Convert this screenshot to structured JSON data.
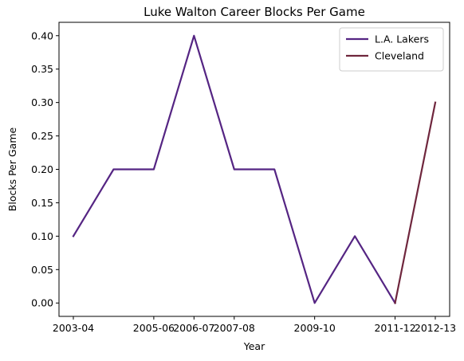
{
  "chart_data": {
    "type": "line",
    "title": "Luke Walton Career Blocks Per Game",
    "xlabel": "Year",
    "ylabel": "Blocks Per Game",
    "x_tick_labels": [
      "2003-04",
      "2005-06",
      "2006-07",
      "2007-08",
      "2009-10",
      "2011-12",
      "2012-13"
    ],
    "ylim": [
      -0.02,
      0.42
    ],
    "y_ticks": [
      0.0,
      0.05,
      0.1,
      0.15,
      0.2,
      0.25,
      0.3,
      0.35,
      0.4
    ],
    "y_tick_labels": [
      "0.00",
      "0.05",
      "0.10",
      "0.15",
      "0.20",
      "0.25",
      "0.30",
      "0.35",
      "0.40"
    ],
    "series": [
      {
        "name": "L.A. Lakers",
        "color": "#552583",
        "x": [
          "2003-04",
          "2004-05",
          "2005-06",
          "2006-07",
          "2007-08",
          "2008-09",
          "2009-10",
          "2010-11",
          "2011-12"
        ],
        "values": [
          0.1,
          0.2,
          0.2,
          0.4,
          0.2,
          0.2,
          0.0,
          0.1,
          0.0
        ]
      },
      {
        "name": "Cleveland",
        "color": "#6F263D",
        "x": [
          "2011-12",
          "2012-13"
        ],
        "values": [
          0.0,
          0.3
        ]
      }
    ],
    "legend_position": "top-right",
    "grid": false
  }
}
